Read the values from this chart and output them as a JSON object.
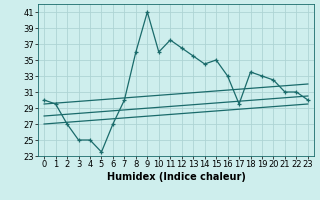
{
  "xlabel": "Humidex (Indice chaleur)",
  "bg_color": "#ceeeed",
  "grid_color": "#aed4d4",
  "line_color": "#1a6b6b",
  "xlim": [
    -0.5,
    23.5
  ],
  "ylim": [
    23,
    42
  ],
  "yticks": [
    23,
    25,
    27,
    29,
    31,
    33,
    35,
    37,
    39,
    41
  ],
  "xticks": [
    0,
    1,
    2,
    3,
    4,
    5,
    6,
    7,
    8,
    9,
    10,
    11,
    12,
    13,
    14,
    15,
    16,
    17,
    18,
    19,
    20,
    21,
    22,
    23
  ],
  "series1_x": [
    0,
    1,
    2,
    3,
    4,
    5,
    6,
    7,
    8,
    9,
    10,
    11,
    12,
    13,
    14,
    15,
    16,
    17,
    18,
    19,
    20,
    21,
    22,
    23
  ],
  "series1_y": [
    30.0,
    29.5,
    27.0,
    25.0,
    25.0,
    23.5,
    27.0,
    30.0,
    36.0,
    41.0,
    36.0,
    37.5,
    36.5,
    35.5,
    34.5,
    35.0,
    33.0,
    29.5,
    33.5,
    33.0,
    32.5,
    31.0,
    31.0,
    30.0
  ],
  "trend1_x": [
    0,
    23
  ],
  "trend1_y": [
    29.5,
    32.0
  ],
  "trend2_x": [
    0,
    23
  ],
  "trend2_y": [
    28.0,
    30.5
  ],
  "trend3_x": [
    0,
    23
  ],
  "trend3_y": [
    27.0,
    29.5
  ],
  "xlabel_fontsize": 7,
  "tick_fontsize": 6
}
